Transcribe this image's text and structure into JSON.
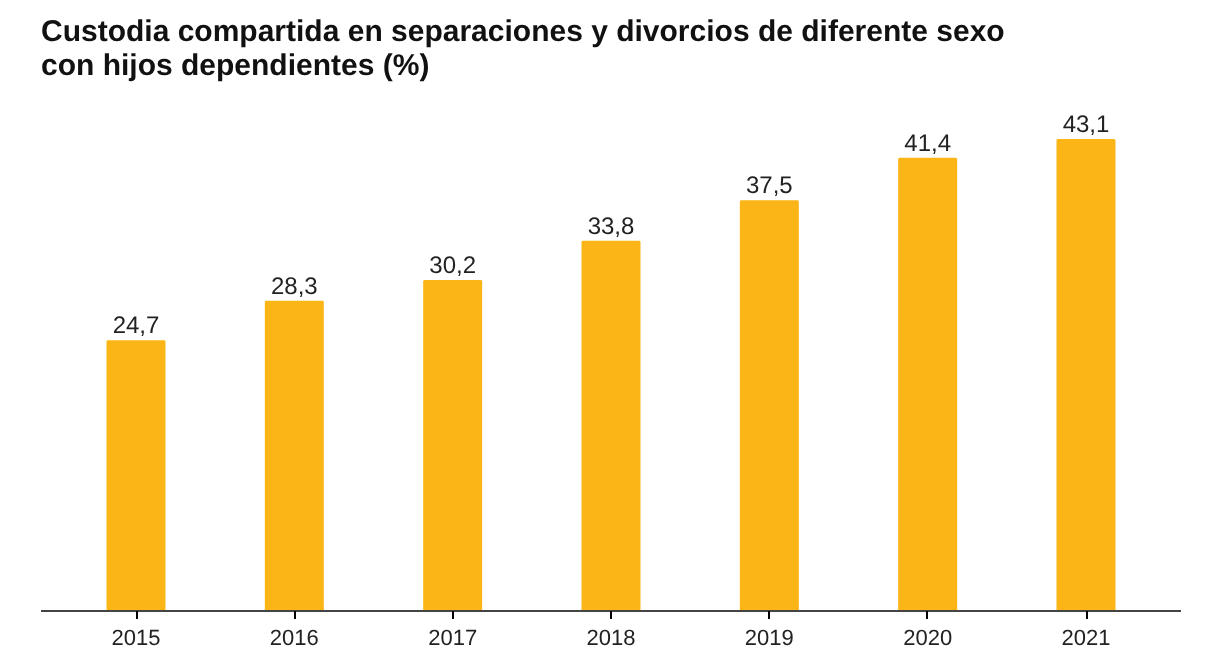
{
  "chart_data": {
    "type": "bar",
    "title": "Custodia compartida en separaciones y divorcios de diferente sexo con hijos dependientes (%)",
    "categories": [
      "2015",
      "2016",
      "2017",
      "2018",
      "2019",
      "2020",
      "2021"
    ],
    "values": [
      24.7,
      28.3,
      30.2,
      33.8,
      37.5,
      41.4,
      43.1
    ],
    "value_labels": [
      "24,7",
      "28,3",
      "30,2",
      "33,8",
      "37,5",
      "41,4",
      "43,1"
    ],
    "color": "#fbb516",
    "grid": false
  }
}
